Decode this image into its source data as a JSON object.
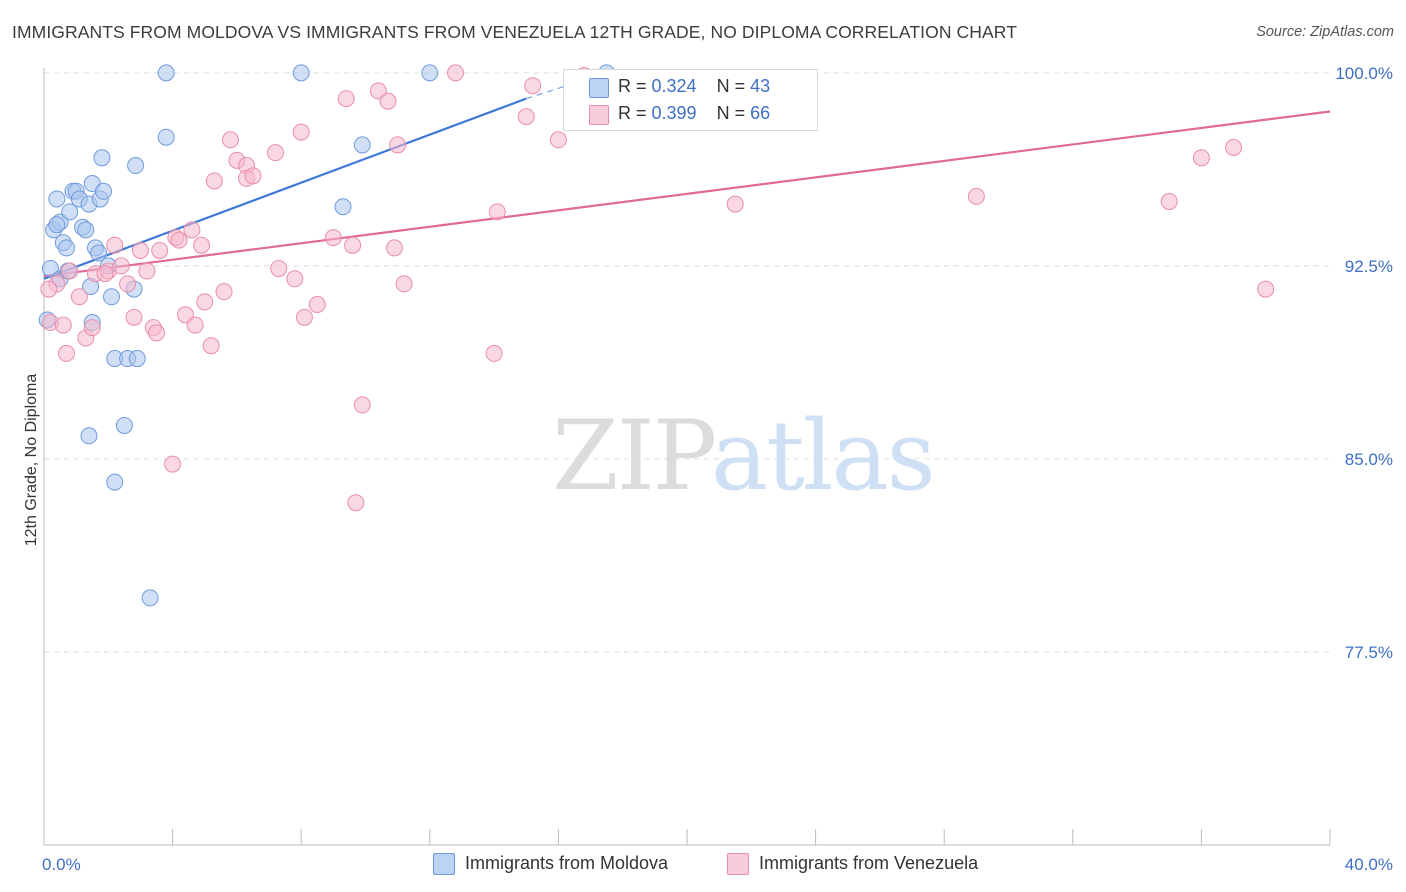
{
  "header": {
    "title": "IMMIGRANTS FROM MOLDOVA VS IMMIGRANTS FROM VENEZUELA 12TH GRADE, NO DIPLOMA CORRELATION CHART",
    "source": "Source: ZipAtlas.com"
  },
  "watermark": {
    "zip": "ZIP",
    "atlas": "atlas"
  },
  "legend": {
    "rows": [
      {
        "r_label": "R = ",
        "r_value": "0.324",
        "n_label": "N = ",
        "n_value": "43",
        "color": "#a9c4ee"
      },
      {
        "r_label": "R = ",
        "r_value": "0.399",
        "n_label": "N = ",
        "n_value": "66",
        "color": "#f6b8cc"
      }
    ]
  },
  "chart_data": {
    "type": "scatter",
    "title": "IMMIGRANTS FROM MOLDOVA VS IMMIGRANTS FROM VENEZUELA 12TH GRADE, NO DIPLOMA CORRELATION CHART",
    "xlabel": "",
    "ylabel": "12th Grade, No Diploma",
    "xlim": [
      0,
      40
    ],
    "ylim": [
      70,
      100.5
    ],
    "x_tick_labels": [
      "0.0%",
      "40.0%"
    ],
    "y_ticks": [
      77.5,
      85.0,
      92.5,
      100.0
    ],
    "y_tick_labels": [
      "77.5%",
      "85.0%",
      "92.5%",
      "100.0%"
    ],
    "grid": true,
    "legend_position": "top-center",
    "series": [
      {
        "name": "Immigrants from Moldova",
        "color": "#a9c4ee",
        "edge": "#6f9bdc",
        "trend_color": "#3c78d8",
        "trend": {
          "x": [
            0.0,
            15.0
          ],
          "y": [
            92.0,
            99.0
          ],
          "dashed_to": [
            17.5,
            100.0
          ]
        },
        "points": [
          [
            0.3,
            93.9
          ],
          [
            0.4,
            95.1
          ],
          [
            0.5,
            94.2
          ],
          [
            0.6,
            93.4
          ],
          [
            0.7,
            93.2
          ],
          [
            0.8,
            94.6
          ],
          [
            0.9,
            95.4
          ],
          [
            1.0,
            95.4
          ],
          [
            1.1,
            95.1
          ],
          [
            1.2,
            94.0
          ],
          [
            1.3,
            93.9
          ],
          [
            1.4,
            94.9
          ],
          [
            1.5,
            95.7
          ],
          [
            1.6,
            93.2
          ],
          [
            1.7,
            93.0
          ],
          [
            1.8,
            96.7
          ],
          [
            1.75,
            95.1
          ],
          [
            1.85,
            95.4
          ],
          [
            2.0,
            92.5
          ],
          [
            2.1,
            91.3
          ],
          [
            0.2,
            92.4
          ],
          [
            0.5,
            92.0
          ],
          [
            0.75,
            92.3
          ],
          [
            1.45,
            91.7
          ],
          [
            1.5,
            90.3
          ],
          [
            2.2,
            88.9
          ],
          [
            2.6,
            88.9
          ],
          [
            2.9,
            88.9
          ],
          [
            2.5,
            86.3
          ],
          [
            1.4,
            85.9
          ],
          [
            2.2,
            84.1
          ],
          [
            3.3,
            79.6
          ],
          [
            2.8,
            91.6
          ],
          [
            2.85,
            96.4
          ],
          [
            3.8,
            100.0
          ],
          [
            3.8,
            97.5
          ],
          [
            8.0,
            100.0
          ],
          [
            12.0,
            100.0
          ],
          [
            9.3,
            94.8
          ],
          [
            9.9,
            97.2
          ],
          [
            0.1,
            90.4
          ],
          [
            0.4,
            94.1
          ],
          [
            17.5,
            100.0
          ]
        ]
      },
      {
        "name": "Immigrants from Venezuela",
        "color": "#f6b8cc",
        "edge": "#e98eab",
        "trend_color": "#e06a95",
        "trend": {
          "x": [
            0.0,
            40.0
          ],
          "y": [
            92.1,
            98.5
          ]
        },
        "points": [
          [
            0.2,
            90.3
          ],
          [
            0.4,
            91.8
          ],
          [
            0.6,
            90.2
          ],
          [
            0.7,
            89.1
          ],
          [
            0.8,
            92.3
          ],
          [
            1.1,
            91.3
          ],
          [
            1.3,
            89.7
          ],
          [
            1.5,
            90.1
          ],
          [
            1.6,
            92.2
          ],
          [
            2.0,
            92.3
          ],
          [
            2.2,
            93.3
          ],
          [
            2.4,
            92.5
          ],
          [
            2.6,
            91.8
          ],
          [
            2.8,
            90.5
          ],
          [
            3.0,
            93.1
          ],
          [
            3.2,
            92.3
          ],
          [
            3.4,
            90.1
          ],
          [
            3.6,
            93.1
          ],
          [
            4.1,
            93.6
          ],
          [
            4.2,
            93.5
          ],
          [
            4.4,
            90.6
          ],
          [
            4.6,
            93.9
          ],
          [
            4.7,
            90.2
          ],
          [
            4.9,
            93.3
          ],
          [
            5.0,
            91.1
          ],
          [
            5.2,
            89.4
          ],
          [
            5.3,
            95.8
          ],
          [
            5.6,
            91.5
          ],
          [
            5.8,
            97.4
          ],
          [
            6.0,
            96.6
          ],
          [
            6.3,
            96.4
          ],
          [
            6.3,
            95.9
          ],
          [
            6.5,
            96.0
          ],
          [
            7.2,
            96.9
          ],
          [
            7.3,
            92.4
          ],
          [
            7.8,
            92.0
          ],
          [
            8.1,
            90.5
          ],
          [
            8.0,
            97.7
          ],
          [
            8.5,
            91.0
          ],
          [
            9.0,
            93.6
          ],
          [
            9.4,
            99.0
          ],
          [
            9.6,
            93.3
          ],
          [
            9.9,
            87.1
          ],
          [
            9.7,
            83.3
          ],
          [
            10.4,
            99.3
          ],
          [
            10.7,
            98.9
          ],
          [
            10.9,
            93.2
          ],
          [
            11.0,
            97.2
          ],
          [
            11.2,
            91.8
          ],
          [
            12.8,
            100.0
          ],
          [
            14.0,
            89.1
          ],
          [
            14.1,
            94.6
          ],
          [
            15.0,
            98.3
          ],
          [
            15.2,
            99.5
          ],
          [
            16.0,
            97.4
          ],
          [
            21.5,
            94.9
          ],
          [
            29.0,
            95.2
          ],
          [
            35.0,
            95.0
          ],
          [
            36.0,
            96.7
          ],
          [
            37.0,
            97.1
          ],
          [
            38.0,
            91.6
          ],
          [
            4.0,
            84.8
          ],
          [
            3.5,
            89.9
          ],
          [
            0.15,
            91.6
          ],
          [
            1.9,
            92.2
          ],
          [
            16.8,
            99.9
          ]
        ]
      }
    ]
  }
}
